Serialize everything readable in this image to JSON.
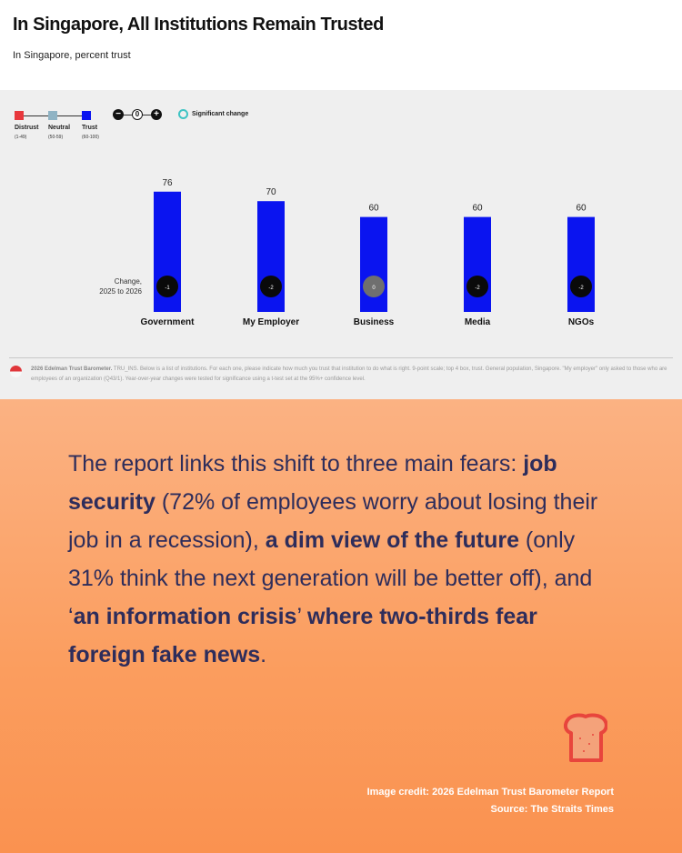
{
  "header": {
    "title": "In Singapore, All Institutions Remain Trusted",
    "subtitle": "In Singapore, percent trust"
  },
  "legend": {
    "scale": [
      {
        "label": "Distrust",
        "range": "(1-49)",
        "color": "#e8383d"
      },
      {
        "label": "Neutral",
        "range": "(50-59)",
        "color": "#8fb3c4"
      },
      {
        "label": "Trust",
        "range": "(60-100)",
        "color": "#0a14f0"
      }
    ],
    "significance_symbols": [
      "−",
      "0",
      "+"
    ],
    "significant_change_label": "Significant change"
  },
  "change_label": "Change,\n2025 to 2026",
  "chart_data": {
    "type": "bar",
    "categories": [
      "Government",
      "My Employer",
      "Business",
      "Media",
      "NGOs"
    ],
    "values": [
      76,
      70,
      60,
      60,
      60
    ],
    "changes": [
      "-1",
      "-2",
      "0",
      "-2",
      "-2"
    ],
    "ylim": [
      0,
      100
    ],
    "bar_color": "#0a14f0"
  },
  "footer_note": {
    "source_bold": "2026 Edelman Trust Barometer.",
    "text": " TRU_INS. Below is a list of institutions. For each one, please indicate how much you trust that institution to do what is right. 9-point scale; top 4 box, trust. General population, Singapore. \"My employer\" only asked to those who are employees of an organization (Q43/1). Year-over-year changes were tested for significance using a t-test set at the 95%+ confidence level."
  },
  "quote": {
    "p1": "The report links this shift to three main fears: ",
    "b1": "job security",
    "p2": " (72% of employees worry about losing their job in a recession), ",
    "b2": "a dim view of the future",
    "p3": " (only 31% think the next generation will be better off), and ‘",
    "b3": "an information crisis",
    "p4": "’ ",
    "b4": "where two-thirds fear foreign fake news",
    "p5": "."
  },
  "credit": {
    "line1": "Image credit: 2026 Edelman Trust Barometer Report",
    "line2": "Source: The Straits Times"
  },
  "icons": {
    "brand": "toast-bread-icon",
    "flag": "singapore-flag-icon"
  }
}
